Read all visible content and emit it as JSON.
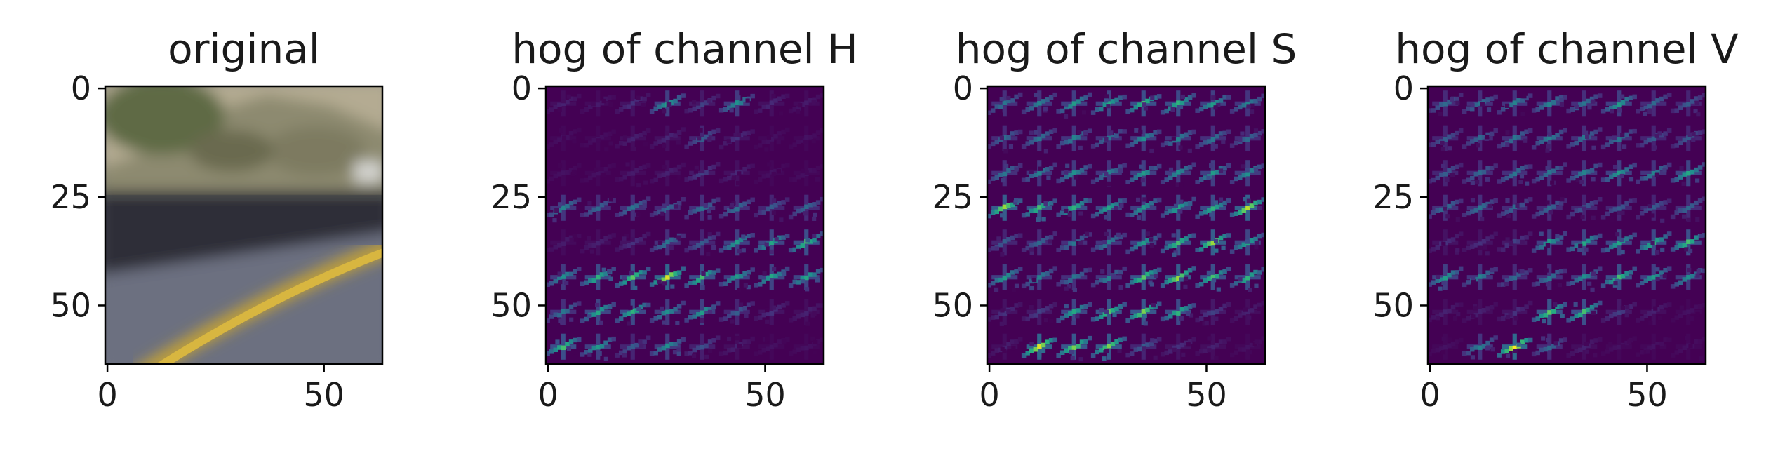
{
  "chart_data": [
    {
      "type": "image",
      "title": "original",
      "extent": [
        0,
        63
      ],
      "xticks": [
        0,
        50
      ],
      "yticks": [
        0,
        25,
        50
      ],
      "description_colors": {
        "hill": "#9a8f78",
        "vegetation": "#6f7458",
        "sky": "#b8b8a8",
        "barrier": "#2f3038",
        "road": "#6e7280",
        "lane": "#c9a93a"
      }
    },
    {
      "type": "heatmap",
      "title": "hog of channel H",
      "extent": [
        0,
        63
      ],
      "xticks": [
        0,
        50
      ],
      "yticks": [
        0,
        25,
        50
      ],
      "colormap": "viridis",
      "cell_grid": 8,
      "cell_intensity": [
        [
          0.1,
          0.08,
          0.15,
          0.55,
          0.2,
          0.5,
          0.12,
          0.08
        ],
        [
          0.05,
          0.05,
          0.1,
          0.12,
          0.3,
          0.15,
          0.05,
          0.05
        ],
        [
          0.05,
          0.05,
          0.08,
          0.1,
          0.2,
          0.12,
          0.05,
          0.05
        ],
        [
          0.45,
          0.35,
          0.4,
          0.35,
          0.4,
          0.38,
          0.3,
          0.35
        ],
        [
          0.08,
          0.1,
          0.15,
          0.4,
          0.3,
          0.55,
          0.6,
          0.7
        ],
        [
          0.5,
          0.65,
          0.75,
          0.95,
          0.7,
          0.55,
          0.6,
          0.6
        ],
        [
          0.4,
          0.6,
          0.65,
          0.5,
          0.55,
          0.3,
          0.15,
          0.1
        ],
        [
          0.7,
          0.55,
          0.3,
          0.5,
          0.25,
          0.1,
          0.05,
          0.05
        ]
      ]
    },
    {
      "type": "heatmap",
      "title": "hog of channel S",
      "extent": [
        0,
        63
      ],
      "xticks": [
        0,
        50
      ],
      "yticks": [
        0,
        25,
        50
      ],
      "colormap": "viridis",
      "cell_grid": 8,
      "cell_intensity": [
        [
          0.4,
          0.45,
          0.55,
          0.6,
          0.7,
          0.65,
          0.55,
          0.45
        ],
        [
          0.35,
          0.4,
          0.45,
          0.4,
          0.5,
          0.45,
          0.4,
          0.35
        ],
        [
          0.4,
          0.45,
          0.5,
          0.45,
          0.55,
          0.5,
          0.55,
          0.5
        ],
        [
          0.85,
          0.7,
          0.65,
          0.6,
          0.55,
          0.6,
          0.65,
          0.9
        ],
        [
          0.3,
          0.35,
          0.4,
          0.45,
          0.55,
          0.7,
          0.85,
          0.6
        ],
        [
          0.55,
          0.45,
          0.4,
          0.45,
          0.75,
          0.85,
          0.7,
          0.65
        ],
        [
          0.15,
          0.2,
          0.6,
          0.75,
          0.8,
          0.65,
          0.2,
          0.1
        ],
        [
          0.1,
          0.95,
          0.8,
          0.8,
          0.3,
          0.15,
          0.1,
          0.05
        ]
      ]
    },
    {
      "type": "heatmap",
      "title": "hog of channel V",
      "extent": [
        0,
        63
      ],
      "xticks": [
        0,
        50
      ],
      "yticks": [
        0,
        25,
        50
      ],
      "colormap": "viridis",
      "cell_grid": 8,
      "cell_intensity": [
        [
          0.35,
          0.4,
          0.45,
          0.45,
          0.4,
          0.55,
          0.35,
          0.3
        ],
        [
          0.3,
          0.35,
          0.4,
          0.45,
          0.4,
          0.4,
          0.3,
          0.3
        ],
        [
          0.3,
          0.35,
          0.4,
          0.4,
          0.45,
          0.55,
          0.45,
          0.6
        ],
        [
          0.4,
          0.4,
          0.35,
          0.35,
          0.3,
          0.3,
          0.3,
          0.35
        ],
        [
          0.15,
          0.15,
          0.2,
          0.55,
          0.6,
          0.6,
          0.65,
          0.7
        ],
        [
          0.55,
          0.45,
          0.35,
          0.4,
          0.5,
          0.7,
          0.55,
          0.5
        ],
        [
          0.1,
          0.1,
          0.15,
          0.75,
          0.7,
          0.2,
          0.1,
          0.05
        ],
        [
          0.05,
          0.45,
          1.0,
          0.35,
          0.1,
          0.05,
          0.05,
          0.05
        ]
      ]
    }
  ]
}
